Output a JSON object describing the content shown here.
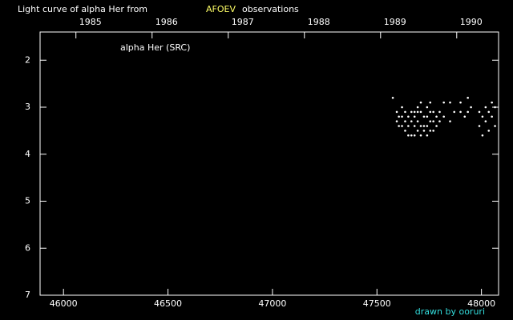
{
  "chart_data": {
    "type": "scatter",
    "title": "Light curve of alpha Her from",
    "title_source": "AFOEV",
    "title_suffix": "observations",
    "credit": "drawn by ooruri",
    "xlim": [
      45888,
      48082
    ],
    "xticks": [
      46000,
      46500,
      47000,
      47500,
      48000
    ],
    "x2lim": [
      1984.34,
      1990.36
    ],
    "x2ticks": [
      1985,
      1986,
      1987,
      1988,
      1989,
      1990
    ],
    "ylim": [
      7,
      1.4
    ],
    "yticks": [
      2,
      3,
      4,
      5,
      6,
      7
    ],
    "series": [
      {
        "name": "alpha Her (SRC)",
        "color": "#ffffff",
        "x": [
          47576,
          47595,
          47595,
          47605,
          47605,
          47620,
          47620,
          47620,
          47635,
          47635,
          47635,
          47650,
          47650,
          47650,
          47665,
          47665,
          47665,
          47680,
          47680,
          47680,
          47680,
          47695,
          47695,
          47695,
          47695,
          47710,
          47710,
          47710,
          47710,
          47725,
          47725,
          47725,
          47740,
          47740,
          47740,
          47740,
          47755,
          47755,
          47755,
          47755,
          47770,
          47770,
          47770,
          47785,
          47785,
          47800,
          47800,
          47820,
          47820,
          47850,
          47850,
          47870,
          47900,
          47900,
          47920,
          47935,
          47935,
          47950,
          47990,
          47990,
          48005,
          48005,
          48020,
          48020,
          48035,
          48035,
          48050,
          48050,
          48065,
          48065
        ],
        "values": [
          2.8,
          3.1,
          3.3,
          3.2,
          3.4,
          3.0,
          3.2,
          3.4,
          3.1,
          3.3,
          3.5,
          3.2,
          3.4,
          3.6,
          3.1,
          3.3,
          3.6,
          3.1,
          3.2,
          3.4,
          3.6,
          3.0,
          3.1,
          3.3,
          3.5,
          2.9,
          3.1,
          3.4,
          3.6,
          3.2,
          3.4,
          3.5,
          3.0,
          3.2,
          3.4,
          3.6,
          2.9,
          3.1,
          3.3,
          3.5,
          3.1,
          3.3,
          3.5,
          3.2,
          3.4,
          3.1,
          3.3,
          2.9,
          3.2,
          2.9,
          3.3,
          3.1,
          2.9,
          3.1,
          3.2,
          2.8,
          3.1,
          3.0,
          3.1,
          3.4,
          3.2,
          3.6,
          3.0,
          3.3,
          3.1,
          3.5,
          2.9,
          3.2,
          3.0,
          3.4
        ]
      }
    ]
  }
}
